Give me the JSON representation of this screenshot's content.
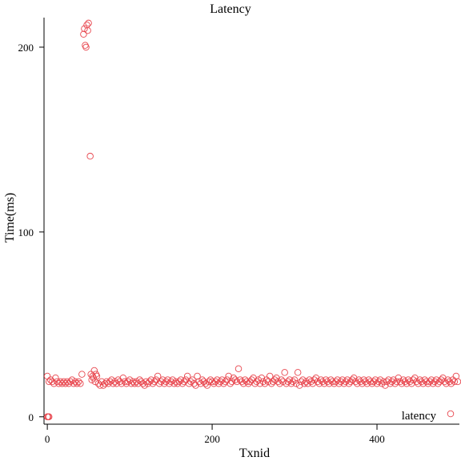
{
  "chart_data": {
    "type": "scatter",
    "title": "Latency",
    "xlabel": "Txnid",
    "ylabel": "Time(ms)",
    "xlim": [
      -4,
      500
    ],
    "ylim": [
      -4,
      216
    ],
    "xticks": [
      0,
      200,
      400
    ],
    "yticks": [
      0,
      100,
      200
    ],
    "grid": false,
    "legend": {
      "position": "bottom-right",
      "entries": [
        "latency"
      ]
    },
    "colors": {
      "series": "#e8474f"
    },
    "series": [
      {
        "name": "latency",
        "marker": "open-circle",
        "points": [
          [
            0,
            0
          ],
          [
            1,
            0
          ],
          [
            2,
            0
          ],
          [
            0,
            22
          ],
          [
            2,
            19
          ],
          [
            4,
            20
          ],
          [
            6,
            19
          ],
          [
            8,
            18
          ],
          [
            10,
            21
          ],
          [
            12,
            19
          ],
          [
            14,
            18
          ],
          [
            16,
            19
          ],
          [
            18,
            18
          ],
          [
            20,
            19
          ],
          [
            22,
            18
          ],
          [
            24,
            19
          ],
          [
            26,
            18
          ],
          [
            28,
            19
          ],
          [
            30,
            20
          ],
          [
            32,
            18
          ],
          [
            34,
            19
          ],
          [
            36,
            18
          ],
          [
            38,
            19
          ],
          [
            40,
            18
          ],
          [
            42,
            23
          ],
          [
            44,
            207
          ],
          [
            45,
            210
          ],
          [
            46,
            201
          ],
          [
            47,
            200
          ],
          [
            48,
            212
          ],
          [
            49,
            209
          ],
          [
            50,
            213
          ],
          [
            52,
            141
          ],
          [
            53,
            23
          ],
          [
            54,
            20
          ],
          [
            55,
            22
          ],
          [
            56,
            21
          ],
          [
            57,
            25
          ],
          [
            58,
            19
          ],
          [
            59,
            23
          ],
          [
            60,
            22
          ],
          [
            62,
            18
          ],
          [
            64,
            17
          ],
          [
            66,
            19
          ],
          [
            68,
            17
          ],
          [
            70,
            18
          ],
          [
            72,
            19
          ],
          [
            74,
            18
          ],
          [
            76,
            19
          ],
          [
            78,
            20
          ],
          [
            80,
            18
          ],
          [
            82,
            19
          ],
          [
            84,
            18
          ],
          [
            86,
            20
          ],
          [
            88,
            19
          ],
          [
            90,
            18
          ],
          [
            92,
            21
          ],
          [
            94,
            19
          ],
          [
            96,
            18
          ],
          [
            98,
            19
          ],
          [
            100,
            20
          ],
          [
            102,
            18
          ],
          [
            104,
            19
          ],
          [
            106,
            18
          ],
          [
            108,
            19
          ],
          [
            110,
            18
          ],
          [
            112,
            20
          ],
          [
            114,
            19
          ],
          [
            116,
            18
          ],
          [
            118,
            17
          ],
          [
            120,
            19
          ],
          [
            122,
            18
          ],
          [
            124,
            19
          ],
          [
            126,
            20
          ],
          [
            128,
            18
          ],
          [
            130,
            19
          ],
          [
            132,
            20
          ],
          [
            134,
            22
          ],
          [
            136,
            18
          ],
          [
            138,
            19
          ],
          [
            140,
            20
          ],
          [
            142,
            18
          ],
          [
            144,
            19
          ],
          [
            146,
            20
          ],
          [
            148,
            18
          ],
          [
            150,
            19
          ],
          [
            152,
            20
          ],
          [
            154,
            18
          ],
          [
            156,
            19
          ],
          [
            158,
            18
          ],
          [
            160,
            19
          ],
          [
            162,
            20
          ],
          [
            164,
            18
          ],
          [
            166,
            19
          ],
          [
            168,
            20
          ],
          [
            170,
            22
          ],
          [
            172,
            18
          ],
          [
            174,
            19
          ],
          [
            176,
            20
          ],
          [
            178,
            18
          ],
          [
            180,
            17
          ],
          [
            182,
            22
          ],
          [
            184,
            19
          ],
          [
            186,
            18
          ],
          [
            188,
            20
          ],
          [
            190,
            19
          ],
          [
            192,
            18
          ],
          [
            194,
            17
          ],
          [
            196,
            19
          ],
          [
            198,
            20
          ],
          [
            200,
            19
          ],
          [
            202,
            18
          ],
          [
            204,
            19
          ],
          [
            206,
            20
          ],
          [
            208,
            18
          ],
          [
            210,
            19
          ],
          [
            212,
            20
          ],
          [
            214,
            18
          ],
          [
            216,
            19
          ],
          [
            218,
            20
          ],
          [
            220,
            22
          ],
          [
            222,
            18
          ],
          [
            224,
            19
          ],
          [
            226,
            21
          ],
          [
            228,
            20
          ],
          [
            230,
            19
          ],
          [
            232,
            26
          ],
          [
            234,
            20
          ],
          [
            236,
            19
          ],
          [
            238,
            18
          ],
          [
            240,
            20
          ],
          [
            242,
            19
          ],
          [
            244,
            18
          ],
          [
            246,
            19
          ],
          [
            248,
            20
          ],
          [
            250,
            21
          ],
          [
            252,
            18
          ],
          [
            254,
            19
          ],
          [
            256,
            20
          ],
          [
            258,
            18
          ],
          [
            260,
            21
          ],
          [
            262,
            19
          ],
          [
            264,
            18
          ],
          [
            266,
            20
          ],
          [
            268,
            19
          ],
          [
            270,
            22
          ],
          [
            272,
            18
          ],
          [
            274,
            19
          ],
          [
            276,
            20
          ],
          [
            278,
            21
          ],
          [
            280,
            19
          ],
          [
            282,
            18
          ],
          [
            284,
            20
          ],
          [
            286,
            19
          ],
          [
            288,
            24
          ],
          [
            290,
            18
          ],
          [
            292,
            19
          ],
          [
            294,
            20
          ],
          [
            296,
            18
          ],
          [
            298,
            19
          ],
          [
            300,
            20
          ],
          [
            302,
            18
          ],
          [
            304,
            24
          ],
          [
            306,
            17
          ],
          [
            308,
            19
          ],
          [
            310,
            20
          ],
          [
            312,
            18
          ],
          [
            314,
            19
          ],
          [
            316,
            18
          ],
          [
            318,
            20
          ],
          [
            320,
            19
          ],
          [
            322,
            18
          ],
          [
            324,
            20
          ],
          [
            326,
            21
          ],
          [
            328,
            19
          ],
          [
            330,
            18
          ],
          [
            332,
            20
          ],
          [
            334,
            19
          ],
          [
            336,
            18
          ],
          [
            338,
            20
          ],
          [
            340,
            19
          ],
          [
            342,
            18
          ],
          [
            344,
            20
          ],
          [
            346,
            19
          ],
          [
            348,
            18
          ],
          [
            350,
            19
          ],
          [
            352,
            20
          ],
          [
            354,
            18
          ],
          [
            356,
            19
          ],
          [
            358,
            20
          ],
          [
            360,
            18
          ],
          [
            362,
            19
          ],
          [
            364,
            20
          ],
          [
            366,
            18
          ],
          [
            368,
            19
          ],
          [
            370,
            20
          ],
          [
            372,
            21
          ],
          [
            374,
            19
          ],
          [
            376,
            18
          ],
          [
            378,
            20
          ],
          [
            380,
            19
          ],
          [
            382,
            18
          ],
          [
            384,
            20
          ],
          [
            386,
            19
          ],
          [
            388,
            18
          ],
          [
            390,
            20
          ],
          [
            392,
            19
          ],
          [
            394,
            18
          ],
          [
            396,
            19
          ],
          [
            398,
            20
          ],
          [
            400,
            18
          ],
          [
            402,
            19
          ],
          [
            404,
            20
          ],
          [
            406,
            18
          ],
          [
            408,
            19
          ],
          [
            410,
            17
          ],
          [
            412,
            19
          ],
          [
            414,
            20
          ],
          [
            416,
            18
          ],
          [
            418,
            19
          ],
          [
            420,
            20
          ],
          [
            422,
            18
          ],
          [
            424,
            19
          ],
          [
            426,
            21
          ],
          [
            428,
            19
          ],
          [
            430,
            18
          ],
          [
            432,
            20
          ],
          [
            434,
            19
          ],
          [
            436,
            18
          ],
          [
            438,
            20
          ],
          [
            440,
            19
          ],
          [
            442,
            18
          ],
          [
            444,
            20
          ],
          [
            446,
            21
          ],
          [
            448,
            19
          ],
          [
            450,
            18
          ],
          [
            452,
            20
          ],
          [
            454,
            19
          ],
          [
            456,
            18
          ],
          [
            458,
            20
          ],
          [
            460,
            19
          ],
          [
            462,
            18
          ],
          [
            464,
            19
          ],
          [
            466,
            20
          ],
          [
            468,
            18
          ],
          [
            470,
            19
          ],
          [
            472,
            20
          ],
          [
            474,
            18
          ],
          [
            476,
            19
          ],
          [
            478,
            20
          ],
          [
            480,
            21
          ],
          [
            482,
            19
          ],
          [
            484,
            18
          ],
          [
            486,
            20
          ],
          [
            488,
            19
          ],
          [
            490,
            18
          ],
          [
            492,
            20
          ],
          [
            494,
            19
          ],
          [
            496,
            22
          ],
          [
            498,
            19
          ]
        ]
      }
    ]
  }
}
